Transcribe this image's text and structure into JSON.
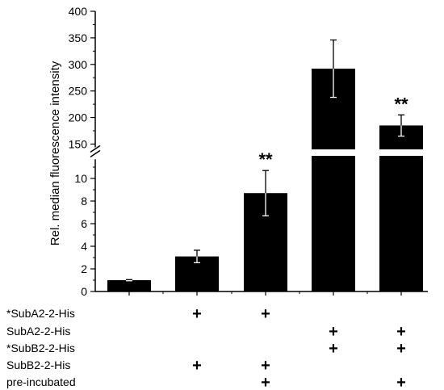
{
  "chart_data": {
    "type": "bar",
    "ylabel": "Rel. median fluorescence intensity",
    "title": "",
    "axis_break": true,
    "lower_segment": {
      "ylim": [
        0,
        12
      ],
      "ticks": [
        "0",
        "2",
        "4",
        "6",
        "8",
        "10"
      ]
    },
    "upper_segment": {
      "ylim": [
        140,
        400
      ],
      "ticks": [
        "150",
        "200",
        "250",
        "300",
        "350",
        "400"
      ]
    },
    "values": [
      1.0,
      3.1,
      8.7,
      292,
      185
    ],
    "errors": [
      0.05,
      0.55,
      2.0,
      54,
      20
    ],
    "significance": [
      "",
      "",
      "**",
      "",
      "**"
    ],
    "conditions": [
      {
        "label": "*SubA2-2-His",
        "marks": [
          "",
          "+",
          "+",
          "",
          ""
        ]
      },
      {
        "label": "SubA2-2-His",
        "marks": [
          "",
          "",
          "",
          "+",
          "+"
        ]
      },
      {
        "label": "*SubB2-2-His",
        "marks": [
          "",
          "",
          "",
          "+",
          "+"
        ]
      },
      {
        "label": "SubB2-2-His",
        "marks": [
          "",
          "+",
          "+",
          "",
          ""
        ]
      },
      {
        "label": "pre-incubated",
        "marks": [
          "",
          "",
          "+",
          "",
          "+"
        ]
      }
    ],
    "grid": false,
    "bar_color": "#000000"
  }
}
